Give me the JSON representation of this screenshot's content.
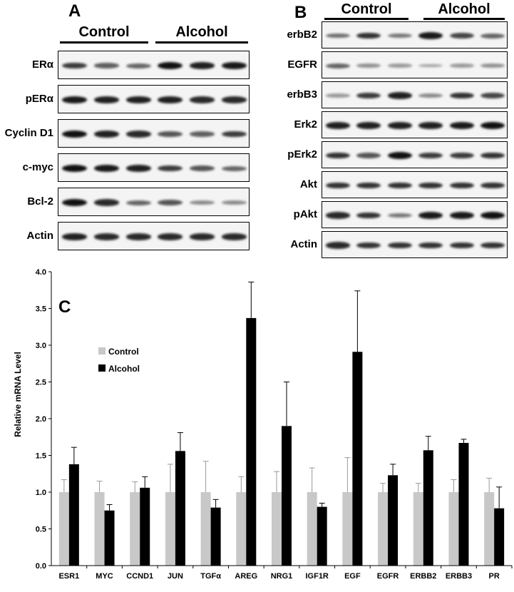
{
  "panel_a": {
    "letter": "A",
    "groups": [
      "Control",
      "Alcohol"
    ],
    "rows": [
      {
        "label": "ERα",
        "bands": [
          0.75,
          0.55,
          0.5,
          1.0,
          0.9,
          0.95
        ]
      },
      {
        "label": "pERα",
        "bands": [
          0.95,
          0.9,
          0.9,
          0.9,
          0.85,
          0.85
        ]
      },
      {
        "label": "Cyclin D1",
        "bands": [
          1.0,
          0.9,
          0.85,
          0.6,
          0.55,
          0.75
        ]
      },
      {
        "label": "c-myc",
        "bands": [
          1.0,
          0.95,
          0.9,
          0.75,
          0.6,
          0.5
        ]
      },
      {
        "label": "Bcl-2",
        "bands": [
          1.0,
          0.85,
          0.5,
          0.6,
          0.3,
          0.3
        ]
      },
      {
        "label": "Actin",
        "bands": [
          0.9,
          0.85,
          0.85,
          0.85,
          0.85,
          0.85
        ]
      }
    ]
  },
  "panel_b": {
    "letter": "B",
    "groups": [
      "Control",
      "Alcohol"
    ],
    "rows": [
      {
        "label": "erbB2",
        "bands": [
          0.45,
          0.8,
          0.4,
          0.95,
          0.7,
          0.5
        ]
      },
      {
        "label": "EGFR",
        "bands": [
          0.5,
          0.25,
          0.2,
          0.15,
          0.2,
          0.25
        ]
      },
      {
        "label": "erbB3",
        "bands": [
          0.2,
          0.75,
          0.9,
          0.3,
          0.8,
          0.7
        ]
      },
      {
        "label": "Erk2",
        "bands": [
          0.9,
          0.9,
          0.9,
          0.9,
          0.95,
          1.0
        ]
      },
      {
        "label": "pErk2",
        "bands": [
          0.8,
          0.6,
          1.0,
          0.75,
          0.75,
          0.8
        ]
      },
      {
        "label": "Akt",
        "bands": [
          0.8,
          0.8,
          0.8,
          0.8,
          0.8,
          0.8
        ]
      },
      {
        "label": "pAkt",
        "bands": [
          0.85,
          0.8,
          0.4,
          0.95,
          0.95,
          1.0
        ]
      },
      {
        "label": "Actin",
        "bands": [
          0.85,
          0.8,
          0.8,
          0.8,
          0.8,
          0.8
        ]
      }
    ]
  },
  "panel_c": {
    "letter": "C"
  },
  "chart_data": {
    "type": "bar",
    "ylabel": "Relative mRNA Level",
    "ylim": [
      0,
      4.0
    ],
    "yticks": [
      "0.0",
      "0.5",
      "1.0",
      "1.5",
      "2.0",
      "2.5",
      "3.0",
      "3.5",
      "4.0"
    ],
    "categories": [
      "ESR1",
      "MYC",
      "CCND1",
      "JUN",
      "TGFα",
      "AREG",
      "NRG1",
      "IGF1R",
      "EGF",
      "EGFR",
      "ERBB2",
      "ERBB3",
      "PR"
    ],
    "legend_position": "top-left",
    "series": [
      {
        "name": "Control",
        "color": "#c8c8c8",
        "values": [
          1.0,
          1.0,
          1.0,
          1.0,
          1.0,
          1.0,
          1.0,
          1.0,
          1.0,
          1.0,
          1.0,
          1.0,
          1.0
        ],
        "errors": [
          0.17,
          0.15,
          0.14,
          0.38,
          0.42,
          0.21,
          0.28,
          0.33,
          0.47,
          0.12,
          0.12,
          0.17,
          0.19
        ]
      },
      {
        "name": "Alcohol",
        "color": "#000000",
        "values": [
          1.38,
          0.75,
          1.06,
          1.56,
          0.79,
          3.37,
          1.9,
          0.8,
          2.91,
          1.23,
          1.57,
          1.67,
          0.78
        ],
        "errors": [
          0.23,
          0.08,
          0.15,
          0.25,
          0.11,
          0.49,
          0.6,
          0.05,
          0.83,
          0.15,
          0.19,
          0.05,
          0.29
        ]
      }
    ]
  }
}
